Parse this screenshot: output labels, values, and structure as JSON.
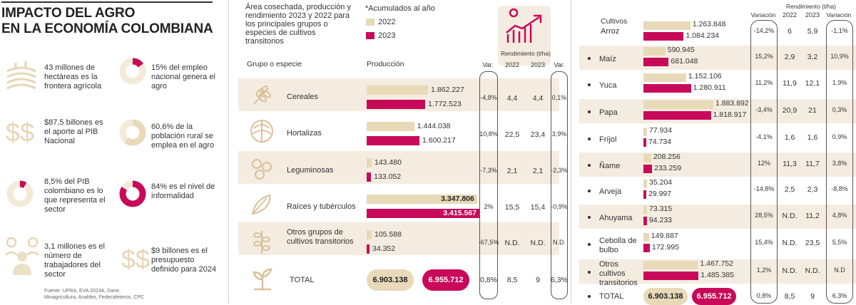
{
  "header": {
    "title_line1": "IMPACTO DEL AGRO",
    "title_line2": "EN LA ECONOMÍA COLOMBIANA"
  },
  "stats": [
    {
      "text": "43 millones de hectáreas es la frontera agrícola",
      "icon": "field-icon"
    },
    {
      "text": "15% del empleo nacional genera el agro",
      "icon": "donut-icon",
      "percent": 15
    },
    {
      "text": "$87,5 billones es el aporte al PIB Nacional",
      "icon": "money-icon"
    },
    {
      "text": "60,6% de la población rural se emplea en el agro",
      "icon": "donut-icon",
      "percent": 60.6
    },
    {
      "text": "8,5% del PIB colombiano es lo que representa el sector",
      "icon": "donut-icon",
      "percent": 8.5
    },
    {
      "text": "84% es el nivel de informalidad",
      "icon": "donut-icon",
      "percent": 84
    },
    {
      "text": "3,1 millones es el número de trabajadores del sector",
      "icon": "people-icon"
    },
    {
      "text": "$9 billones es el presupuesto definido para 2024",
      "icon": "money-icon"
    }
  ],
  "source": {
    "line1": "Fuente: UPRA, EVA 2023A, Dane,",
    "line2": "Minagricultura, Analdex, Fedecafeteros, CPC"
  },
  "colors": {
    "y2022": "#e8d9b8",
    "y2023": "#c8095a",
    "band": "#f4ece0"
  },
  "chart_data": [
    {
      "type": "bar",
      "title": "Área cosechada, producción y rendimiento 2023 y 2022 para los principales grupos o especies de cultivos transitorios",
      "note": "*Acumulados al año",
      "legend": [
        "2022",
        "2023"
      ],
      "col_group": "Grupo o especie",
      "col_production": "Producción",
      "col_var": "Var.",
      "col_yield": "Rendimiento (t/ha)",
      "col_2022": "2022",
      "col_2023": "2023",
      "categories": [
        "Cereales",
        "Hortalizas",
        "Leguminosas",
        "Raíces y tubérculos",
        "Otros grupos de cultivos transitorios"
      ],
      "series": [
        {
          "name": "2022",
          "values": [
            1862227,
            1444038,
            143480,
            3347806,
            105588
          ],
          "labels": [
            "1.862.227",
            "1.444.038",
            "143.480",
            "3.347.806",
            "105.588"
          ]
        },
        {
          "name": "2023",
          "values": [
            1772523,
            1600217,
            133052,
            3415567,
            34352
          ],
          "labels": [
            "1.772.523",
            "1.600.217",
            "133.052",
            "3.415.567",
            "34.352"
          ]
        }
      ],
      "production_var": [
        "-4,8%",
        "10,8%",
        "-7,3%",
        "2%",
        "-67,5%"
      ],
      "yield_2022": [
        "4,4",
        "22,5",
        "2,1",
        "15,5",
        "N.D."
      ],
      "yield_2023": [
        "4,4",
        "23,4",
        "2,1",
        "15,4",
        "N.D."
      ],
      "yield_var": [
        "0,1%",
        "3,9%",
        "-2,3%",
        "-0,9%",
        "N.D."
      ],
      "total": {
        "label": "TOTAL",
        "v2022": "6.903.138",
        "v2023": "6.955.712",
        "var": "0,8%",
        "y2022": "8,5",
        "y2023": "9",
        "yvar": "6,3%"
      }
    },
    {
      "type": "bar",
      "col_crops": "Cultivos",
      "col_var": "Variación",
      "col_yield": "Rendimiento (t/ha)",
      "col_2022": "2022",
      "col_2023": "2023",
      "categories": [
        "Arroz",
        "Maíz",
        "Yuca",
        "Papa",
        "Fríjol",
        "Ñame",
        "Arveja",
        "Ahuyama",
        "Cebolla de bulbo",
        "Otros cultivos transitorios"
      ],
      "series": [
        {
          "name": "2022",
          "values": [
            1263848,
            590945,
            1152106,
            1883892,
            77934,
            208256,
            35204,
            73315,
            149887,
            1467752
          ],
          "labels": [
            "1.263.848",
            "590.945",
            "1.152.106",
            "1.883.892",
            "77.934",
            "208.256",
            "35.204",
            "73.315",
            "149.887",
            "1.467.752"
          ]
        },
        {
          "name": "2023",
          "values": [
            1084234,
            681048,
            1280911,
            1818917,
            74734,
            233259,
            29997,
            94233,
            172995,
            1485385
          ],
          "labels": [
            "1.084.234",
            "681.048",
            "1.280.911",
            "1.818.917",
            "74.734",
            "233.259",
            "29.997",
            "94.233",
            "172.995",
            "1.485.385"
          ]
        }
      ],
      "production_var": [
        "-14,2%",
        "15,2%",
        "11,2%",
        "-3,4%",
        "-4,1%",
        "12%",
        "-14,8%",
        "28,5%",
        "15,4%",
        "1,2%"
      ],
      "yield_2022": [
        "6",
        "2,9",
        "11,9",
        "20,9",
        "1,6",
        "11,3",
        "2,5",
        "N.D.",
        "N.D.",
        "N.D."
      ],
      "yield_2023": [
        "5,9",
        "3,2",
        "12,1",
        "21",
        "1,6",
        "11,7",
        "2,3",
        "11,2",
        "23,5",
        "N.D."
      ],
      "yield_var": [
        "-1,1%",
        "10,9%",
        "1,9%",
        "0,3%",
        "0,9%",
        "3,8%",
        "-8,8%",
        "4,8%",
        "5,5%",
        "N.D"
      ],
      "total": {
        "label": "TOTAL",
        "v2022": "6.903.138",
        "v2023": "6.955.712",
        "var": "0,8%",
        "y2022": "8,5",
        "y2023": "9",
        "yvar": "6,3%"
      }
    }
  ]
}
